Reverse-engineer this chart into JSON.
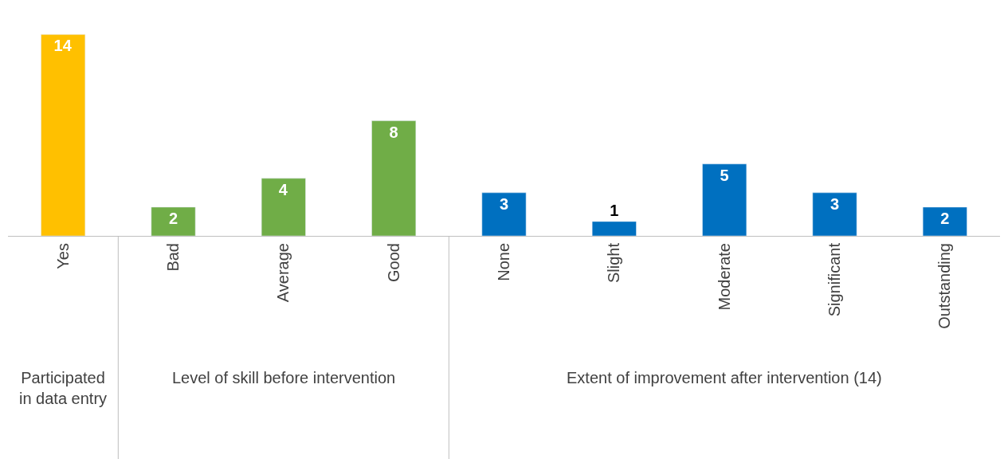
{
  "chart_data": {
    "type": "bar",
    "categories": [
      "Yes",
      "Bad",
      "Average",
      "Good",
      "None",
      "Slight",
      "Moderate",
      "Significant",
      "Outstanding"
    ],
    "values": [
      14,
      2,
      4,
      8,
      3,
      1,
      5,
      3,
      2
    ],
    "colors": [
      "#ffc000",
      "#70ad47",
      "#70ad47",
      "#70ad47",
      "#0070c0",
      "#0070c0",
      "#0070c0",
      "#0070c0",
      "#0070c0"
    ],
    "annotations": [
      "Participated in data entry",
      "Level of skill before intervention",
      "Extent of improvement after intervention (14)"
    ],
    "data_labels": true
  }
}
